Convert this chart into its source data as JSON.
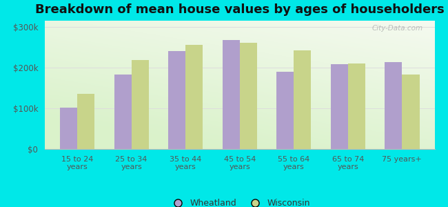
{
  "title": "Breakdown of mean house values by ages of householders",
  "categories": [
    "15 to 24\nyears",
    "25 to 34\nyears",
    "35 to 44\nyears",
    "45 to 54\nyears",
    "55 to 64\nyears",
    "65 to 74\nyears",
    "75 years+"
  ],
  "wheatland": [
    102000,
    183000,
    240000,
    268000,
    190000,
    208000,
    214000
  ],
  "wisconsin": [
    135000,
    218000,
    255000,
    260000,
    242000,
    210000,
    183000
  ],
  "wheatland_color": "#b09fcc",
  "wisconsin_color": "#c8d48a",
  "background_color": "#00e8e8",
  "yticks": [
    0,
    100000,
    200000,
    300000
  ],
  "ylim": [
    0,
    315000
  ],
  "bar_width": 0.32,
  "title_fontsize": 13,
  "legend_labels": [
    "Wheatland",
    "Wisconsin"
  ],
  "watermark": "City-Data.com"
}
